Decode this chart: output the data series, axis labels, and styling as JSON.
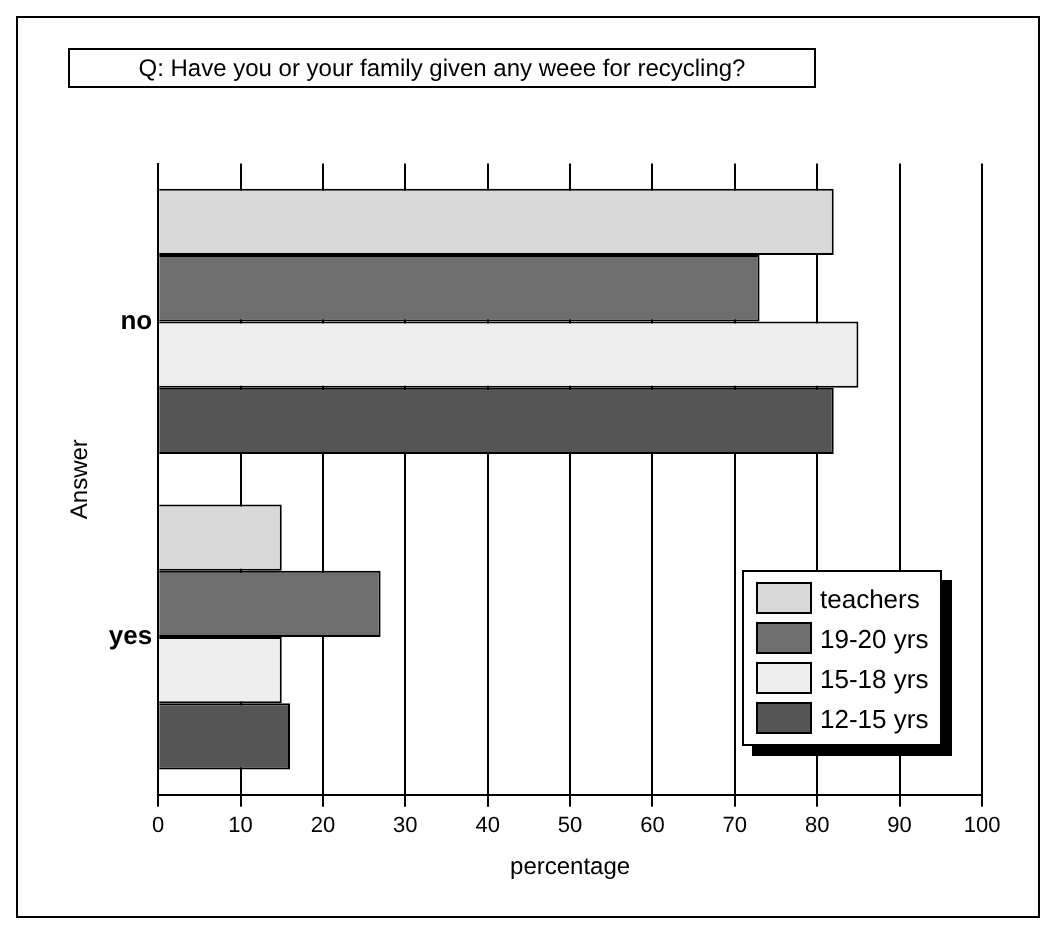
{
  "chart_data": {
    "type": "bar",
    "orientation": "horizontal",
    "title": "Q: Have you or your family given any weee for recycling?",
    "xlabel": "percentage",
    "ylabel": "Answer",
    "categories": [
      "no",
      "yes"
    ],
    "series": [
      {
        "name": "teachers",
        "color": "#d9d9d9",
        "values": [
          82,
          15
        ]
      },
      {
        "name": "19-20 yrs",
        "color": "#6e6e6e",
        "values": [
          73,
          27
        ]
      },
      {
        "name": "15-18 yrs",
        "color": "#eeeeee",
        "values": [
          85,
          15
        ]
      },
      {
        "name": "12-15 yrs",
        "color": "#555555",
        "values": [
          82,
          16
        ]
      }
    ],
    "xlim": [
      0,
      100
    ],
    "xticks": [
      0,
      10,
      20,
      30,
      40,
      50,
      60,
      70,
      80,
      90,
      100
    ],
    "grid": "x",
    "legend": "bottom right"
  }
}
